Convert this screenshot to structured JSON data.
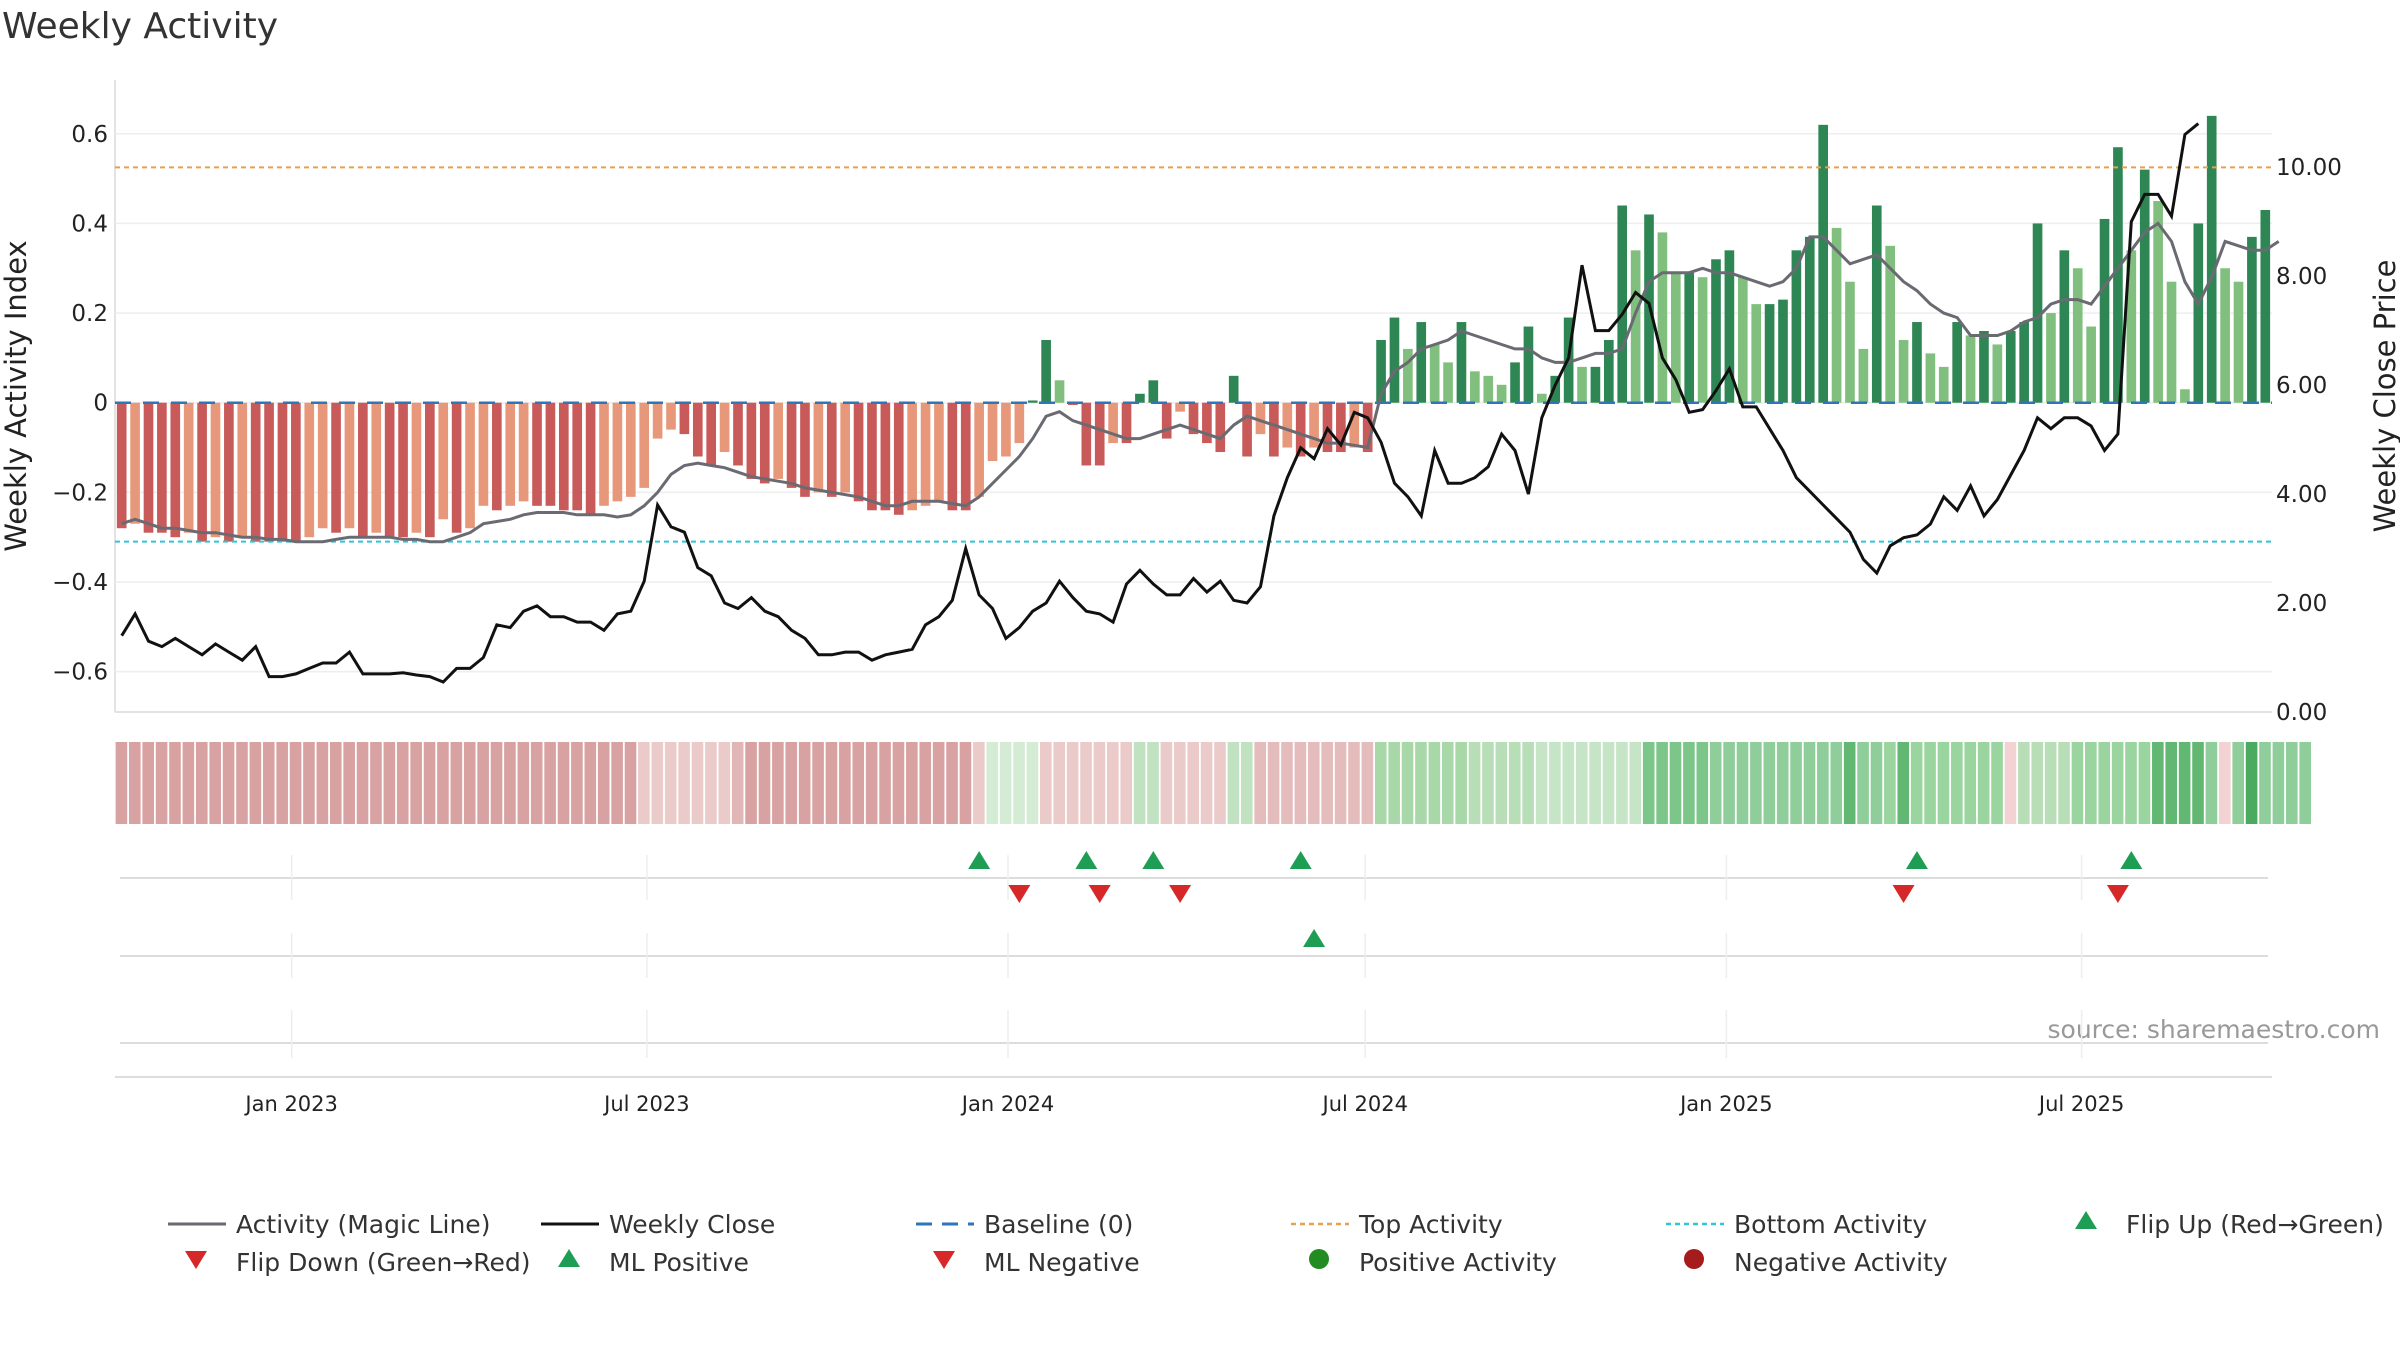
{
  "chart_data": {
    "type": "bar",
    "title": "Weekly Activity",
    "source": "source: sharemaestro.com",
    "ylabel": "Weekly Activity Index",
    "y2label": "Weekly Close Price",
    "ylim": [
      -0.69,
      0.72
    ],
    "y2lim": [
      0,
      11.6
    ],
    "yticks": [
      "0.6",
      "0.4",
      "0.2",
      "0",
      "−0.2",
      "−0.4",
      "−0.6"
    ],
    "yticks_values": [
      0.6,
      0.4,
      0.2,
      0,
      -0.2,
      -0.4,
      -0.6
    ],
    "y2ticks": [
      "10.00",
      "8.00",
      "6.00",
      "4.00",
      "2.00",
      "0.00"
    ],
    "y2ticks_values": [
      10,
      8,
      6,
      4,
      2,
      0
    ],
    "x_start": "2022-10-03",
    "x_end": "2025-10-06",
    "x_tick_labels": [
      "Jan 2023",
      "Jul 2023",
      "Jan 2024",
      "Jul 2024",
      "Jan 2025",
      "Jul 2025"
    ],
    "x_tick_dates": [
      "2023-01-01",
      "2023-07-01",
      "2024-01-01",
      "2024-07-01",
      "2025-01-01",
      "2025-07-01"
    ],
    "top_activity": 0.525,
    "bottom_activity": -0.31,
    "baseline": 0,
    "activity": [
      -0.28,
      -0.27,
      -0.29,
      -0.29,
      -0.3,
      -0.29,
      -0.31,
      -0.3,
      -0.31,
      -0.3,
      -0.31,
      -0.31,
      -0.31,
      -0.31,
      -0.3,
      -0.28,
      -0.29,
      -0.28,
      -0.3,
      -0.29,
      -0.3,
      -0.3,
      -0.29,
      -0.3,
      -0.26,
      -0.29,
      -0.28,
      -0.23,
      -0.24,
      -0.23,
      -0.22,
      -0.23,
      -0.23,
      -0.24,
      -0.24,
      -0.25,
      -0.23,
      -0.22,
      -0.21,
      -0.19,
      -0.08,
      -0.06,
      -0.07,
      -0.12,
      -0.14,
      -0.11,
      -0.14,
      -0.17,
      -0.18,
      -0.17,
      -0.19,
      -0.21,
      -0.2,
      -0.21,
      -0.2,
      -0.22,
      -0.24,
      -0.24,
      -0.25,
      -0.24,
      -0.23,
      -0.22,
      -0.24,
      -0.24,
      -0.21,
      -0.13,
      -0.12,
      -0.09,
      0.005,
      0.14,
      0.05,
      -0.005,
      -0.14,
      -0.14,
      -0.09,
      -0.09,
      0.02,
      0.05,
      -0.08,
      -0.02,
      -0.07,
      -0.09,
      -0.11,
      0.06,
      -0.12,
      -0.07,
      -0.12,
      -0.1,
      -0.12,
      -0.1,
      -0.11,
      -0.11,
      -0.1,
      -0.11,
      0.14,
      0.19,
      0.12,
      0.18,
      0.13,
      0.09,
      0.18,
      0.07,
      0.06,
      0.04,
      0.09,
      0.17,
      0.02,
      0.06,
      0.19,
      0.08,
      0.08,
      0.14,
      0.44,
      0.34,
      0.42,
      0.38,
      0.29,
      0.29,
      0.28,
      0.32,
      0.34,
      0.28,
      0.22,
      0.22,
      0.23,
      0.34,
      0.37,
      0.62,
      0.39,
      0.27,
      0.12,
      0.44,
      0.35,
      0.14,
      0.18,
      0.11,
      0.08,
      0.18,
      0.15,
      0.16,
      0.13,
      0.16,
      0.18,
      0.4,
      0.2,
      0.34,
      0.3,
      0.17,
      0.41,
      0.57,
      0.34,
      0.52,
      0.45,
      0.27,
      0.03,
      0.4,
      0.64,
      0.3,
      0.27,
      0.37,
      0.43
    ],
    "magic_line": [
      -0.27,
      -0.26,
      -0.27,
      -0.28,
      -0.28,
      -0.285,
      -0.29,
      -0.29,
      -0.295,
      -0.3,
      -0.3,
      -0.305,
      -0.305,
      -0.31,
      -0.31,
      -0.31,
      -0.305,
      -0.3,
      -0.3,
      -0.3,
      -0.3,
      -0.305,
      -0.305,
      -0.31,
      -0.31,
      -0.3,
      -0.29,
      -0.27,
      -0.265,
      -0.26,
      -0.25,
      -0.245,
      -0.245,
      -0.245,
      -0.25,
      -0.25,
      -0.25,
      -0.255,
      -0.25,
      -0.23,
      -0.2,
      -0.16,
      -0.14,
      -0.135,
      -0.14,
      -0.145,
      -0.155,
      -0.165,
      -0.17,
      -0.175,
      -0.18,
      -0.19,
      -0.195,
      -0.2,
      -0.205,
      -0.21,
      -0.22,
      -0.23,
      -0.23,
      -0.22,
      -0.22,
      -0.22,
      -0.225,
      -0.23,
      -0.21,
      -0.18,
      -0.15,
      -0.12,
      -0.08,
      -0.03,
      -0.02,
      -0.04,
      -0.05,
      -0.06,
      -0.07,
      -0.08,
      -0.08,
      -0.07,
      -0.06,
      -0.05,
      -0.06,
      -0.07,
      -0.08,
      -0.05,
      -0.03,
      -0.04,
      -0.05,
      -0.06,
      -0.07,
      -0.08,
      -0.09,
      -0.09,
      -0.095,
      -0.1,
      0.02,
      0.07,
      0.09,
      0.12,
      0.13,
      0.14,
      0.16,
      0.15,
      0.14,
      0.13,
      0.12,
      0.12,
      0.1,
      0.09,
      0.09,
      0.1,
      0.11,
      0.11,
      0.12,
      0.2,
      0.27,
      0.29,
      0.29,
      0.29,
      0.3,
      0.29,
      0.29,
      0.28,
      0.27,
      0.26,
      0.27,
      0.3,
      0.37,
      0.37,
      0.34,
      0.31,
      0.32,
      0.33,
      0.3,
      0.27,
      0.25,
      0.22,
      0.2,
      0.19,
      0.15,
      0.15,
      0.15,
      0.16,
      0.18,
      0.19,
      0.22,
      0.23,
      0.23,
      0.22,
      0.26,
      0.3,
      0.34,
      0.38,
      0.4,
      0.36,
      0.27,
      0.22,
      0.28,
      0.36,
      0.35,
      0.34,
      0.34,
      0.36
    ],
    "weekly_close": [
      1.4,
      1.8,
      1.3,
      1.2,
      1.35,
      1.2,
      1.05,
      1.25,
      1.1,
      0.95,
      1.2,
      0.65,
      0.65,
      0.7,
      0.8,
      0.9,
      0.9,
      1.1,
      0.7,
      0.7,
      0.7,
      0.72,
      0.68,
      0.65,
      0.55,
      0.8,
      0.8,
      1.0,
      1.6,
      1.55,
      1.85,
      1.95,
      1.75,
      1.75,
      1.65,
      1.65,
      1.5,
      1.8,
      1.85,
      2.4,
      3.8,
      3.4,
      3.3,
      2.65,
      2.5,
      2.0,
      1.9,
      2.1,
      1.85,
      1.75,
      1.5,
      1.35,
      1.05,
      1.05,
      1.1,
      1.1,
      0.95,
      1.05,
      1.1,
      1.15,
      1.6,
      1.75,
      2.05,
      3.0,
      2.15,
      1.9,
      1.35,
      1.55,
      1.85,
      2.0,
      2.4,
      2.1,
      1.85,
      1.8,
      1.65,
      2.35,
      2.6,
      2.35,
      2.15,
      2.15,
      2.45,
      2.2,
      2.4,
      2.05,
      2.0,
      2.3,
      3.6,
      4.3,
      4.85,
      4.65,
      5.2,
      4.9,
      5.5,
      5.4,
      4.95,
      4.2,
      3.95,
      3.6,
      4.8,
      4.2,
      4.2,
      4.3,
      4.5,
      5.1,
      4.8,
      4.0,
      5.4,
      6.0,
      6.5,
      8.2,
      7.0,
      7.0,
      7.3,
      7.7,
      7.5,
      6.5,
      6.1,
      5.5,
      5.55,
      5.9,
      6.3,
      5.6,
      5.6,
      5.2,
      4.8,
      4.3,
      4.05,
      3.8,
      3.55,
      3.3,
      2.8,
      2.55,
      3.05,
      3.2,
      3.25,
      3.45,
      3.95,
      3.7,
      4.15,
      3.6,
      3.9,
      4.35,
      4.8,
      5.4,
      5.2,
      5.4,
      5.4,
      5.25,
      4.8,
      5.1,
      9.0,
      9.5,
      9.5,
      9.1,
      10.6,
      10.8
    ],
    "strip_colors": [
      "#d8a2a2",
      "#d8a2a2",
      "#d8a2a2",
      "#d8a2a2",
      "#d8a2a2",
      "#d8a2a2",
      "#d8a2a2",
      "#d8a2a2",
      "#d8a2a2",
      "#d8a2a2",
      "#d8a2a2",
      "#d8a2a2",
      "#d8a2a2",
      "#d8a2a2",
      "#d8a2a2",
      "#d8a2a2",
      "#d8a2a2",
      "#d8a2a2",
      "#d8a2a2",
      "#d8a2a2",
      "#d8a2a2",
      "#d8a2a2",
      "#d8a2a2",
      "#d8a2a2",
      "#d8a2a2",
      "#d8a2a2",
      "#d8a2a2",
      "#d8a2a2",
      "#d8a2a2",
      "#d8a2a2",
      "#d8a2a2",
      "#d8a2a2",
      "#d8a2a2",
      "#d8a2a2",
      "#d8a2a2",
      "#d8a2a2",
      "#d8a2a2",
      "#d8a2a2",
      "#d8a2a2",
      "#ebcaca",
      "#ebcaca",
      "#ebcaca",
      "#ebcaca",
      "#ebcaca",
      "#ebcaca",
      "#ebcaca",
      "#e2b6b6",
      "#d8a2a2",
      "#d8a2a2",
      "#d8a2a2",
      "#d8a2a2",
      "#d8a2a2",
      "#d8a2a2",
      "#d8a2a2",
      "#d8a2a2",
      "#d8a2a2",
      "#d8a2a2",
      "#d8a2a2",
      "#d8a2a2",
      "#d8a2a2",
      "#d8a2a2",
      "#d8a2a2",
      "#d8a2a2",
      "#d8a2a2",
      "#ebcaca",
      "#d4ebd4",
      "#d4ebd4",
      "#d4ebd4",
      "#d4ebd4",
      "#ebcaca",
      "#ebcaca",
      "#ebcaca",
      "#ebcaca",
      "#ebcaca",
      "#ebcaca",
      "#ebcaca",
      "#c0e2c0",
      "#c0e2c0",
      "#ebcaca",
      "#ebcaca",
      "#ebcaca",
      "#ebcaca",
      "#ebcaca",
      "#c0e2c0",
      "#c0e2c0",
      "#e5bcbc",
      "#e5bcbc",
      "#e5bcbc",
      "#e5bcbc",
      "#e5bcbc",
      "#e5bcbc",
      "#e5bcbc",
      "#e5bcbc",
      "#e5bcbc",
      "#a8d8a8",
      "#a8d8a8",
      "#a8d8a8",
      "#a8d8a8",
      "#a8d8a8",
      "#a8d8a8",
      "#a8d8a8",
      "#b8deb8",
      "#b8deb8",
      "#b8deb8",
      "#b8deb8",
      "#b8deb8",
      "#c6e4c6",
      "#c6e4c6",
      "#c6e4c6",
      "#c6e4c6",
      "#c6e4c6",
      "#c6e4c6",
      "#c6e4c6",
      "#c6e4c6",
      "#7cc68a",
      "#7cc68a",
      "#7cc68a",
      "#7cc68a",
      "#7cc68a",
      "#8fce9a",
      "#8fce9a",
      "#8fce9a",
      "#8fce9a",
      "#8fce9a",
      "#8fce9a",
      "#8fce9a",
      "#8fce9a",
      "#8fce9a",
      "#8fce9a",
      "#62b872",
      "#8fce9a",
      "#8fce9a",
      "#9ad49e",
      "#62b872",
      "#9ad49e",
      "#9ad49e",
      "#9ad49e",
      "#9ad49e",
      "#9ad49e",
      "#9ad49e",
      "#9ad49e",
      "#f2d2d2",
      "#b8deb8",
      "#b8deb8",
      "#b8deb8",
      "#b8deb8",
      "#9ad49e",
      "#9ad49e",
      "#9ad49e",
      "#9ad49e",
      "#9ad49e",
      "#9ad49e",
      "#62b872",
      "#62b872",
      "#62b872",
      "#62b872",
      "#8fce9a",
      "#f2d2d2",
      "#8fce9a",
      "#4aaa60",
      "#8fce9a",
      "#8fce9a",
      "#8fce9a",
      "#8fce9a"
    ],
    "flip_up_weeks": [
      64,
      72,
      77,
      88,
      134,
      150
    ],
    "flip_down_weeks": [
      67,
      73,
      79,
      133,
      149
    ],
    "ml_positive_weeks": [
      89
    ],
    "legend": [
      {
        "label": "Activity (Magic Line)",
        "marker": "line-gray"
      },
      {
        "label": "Weekly Close",
        "marker": "line-black"
      },
      {
        "label": "Baseline (0)",
        "marker": "dash-blue"
      },
      {
        "label": "Top Activity",
        "marker": "dot-orange"
      },
      {
        "label": "Bottom Activity",
        "marker": "dot-cyan"
      },
      {
        "label": "Flip Up (Red→Green)",
        "marker": "triangle-up-green"
      },
      {
        "label": "Flip Down (Green→Red)",
        "marker": "triangle-down-red"
      },
      {
        "label": "ML Positive",
        "marker": "triangle-up-green"
      },
      {
        "label": "ML Negative",
        "marker": "triangle-down-red"
      },
      {
        "label": "Positive Activity",
        "marker": "circle-green"
      },
      {
        "label": "Negative Activity",
        "marker": "circle-red"
      }
    ],
    "colors": {
      "pos_strong": "#2e8654",
      "pos_light": "#80bf7e",
      "neg_strong": "#c95a5a",
      "neg_light": "#e8987a",
      "magic_line": "#6a6a72",
      "close": "#111111",
      "baseline": "#2f75b8",
      "top": "#e6a050",
      "bottom": "#2ec5d6",
      "flip_up": "#1e9e55",
      "flip_down": "#d62828",
      "positive_dot": "#228b22",
      "negative_dot": "#a61c1c"
    }
  }
}
